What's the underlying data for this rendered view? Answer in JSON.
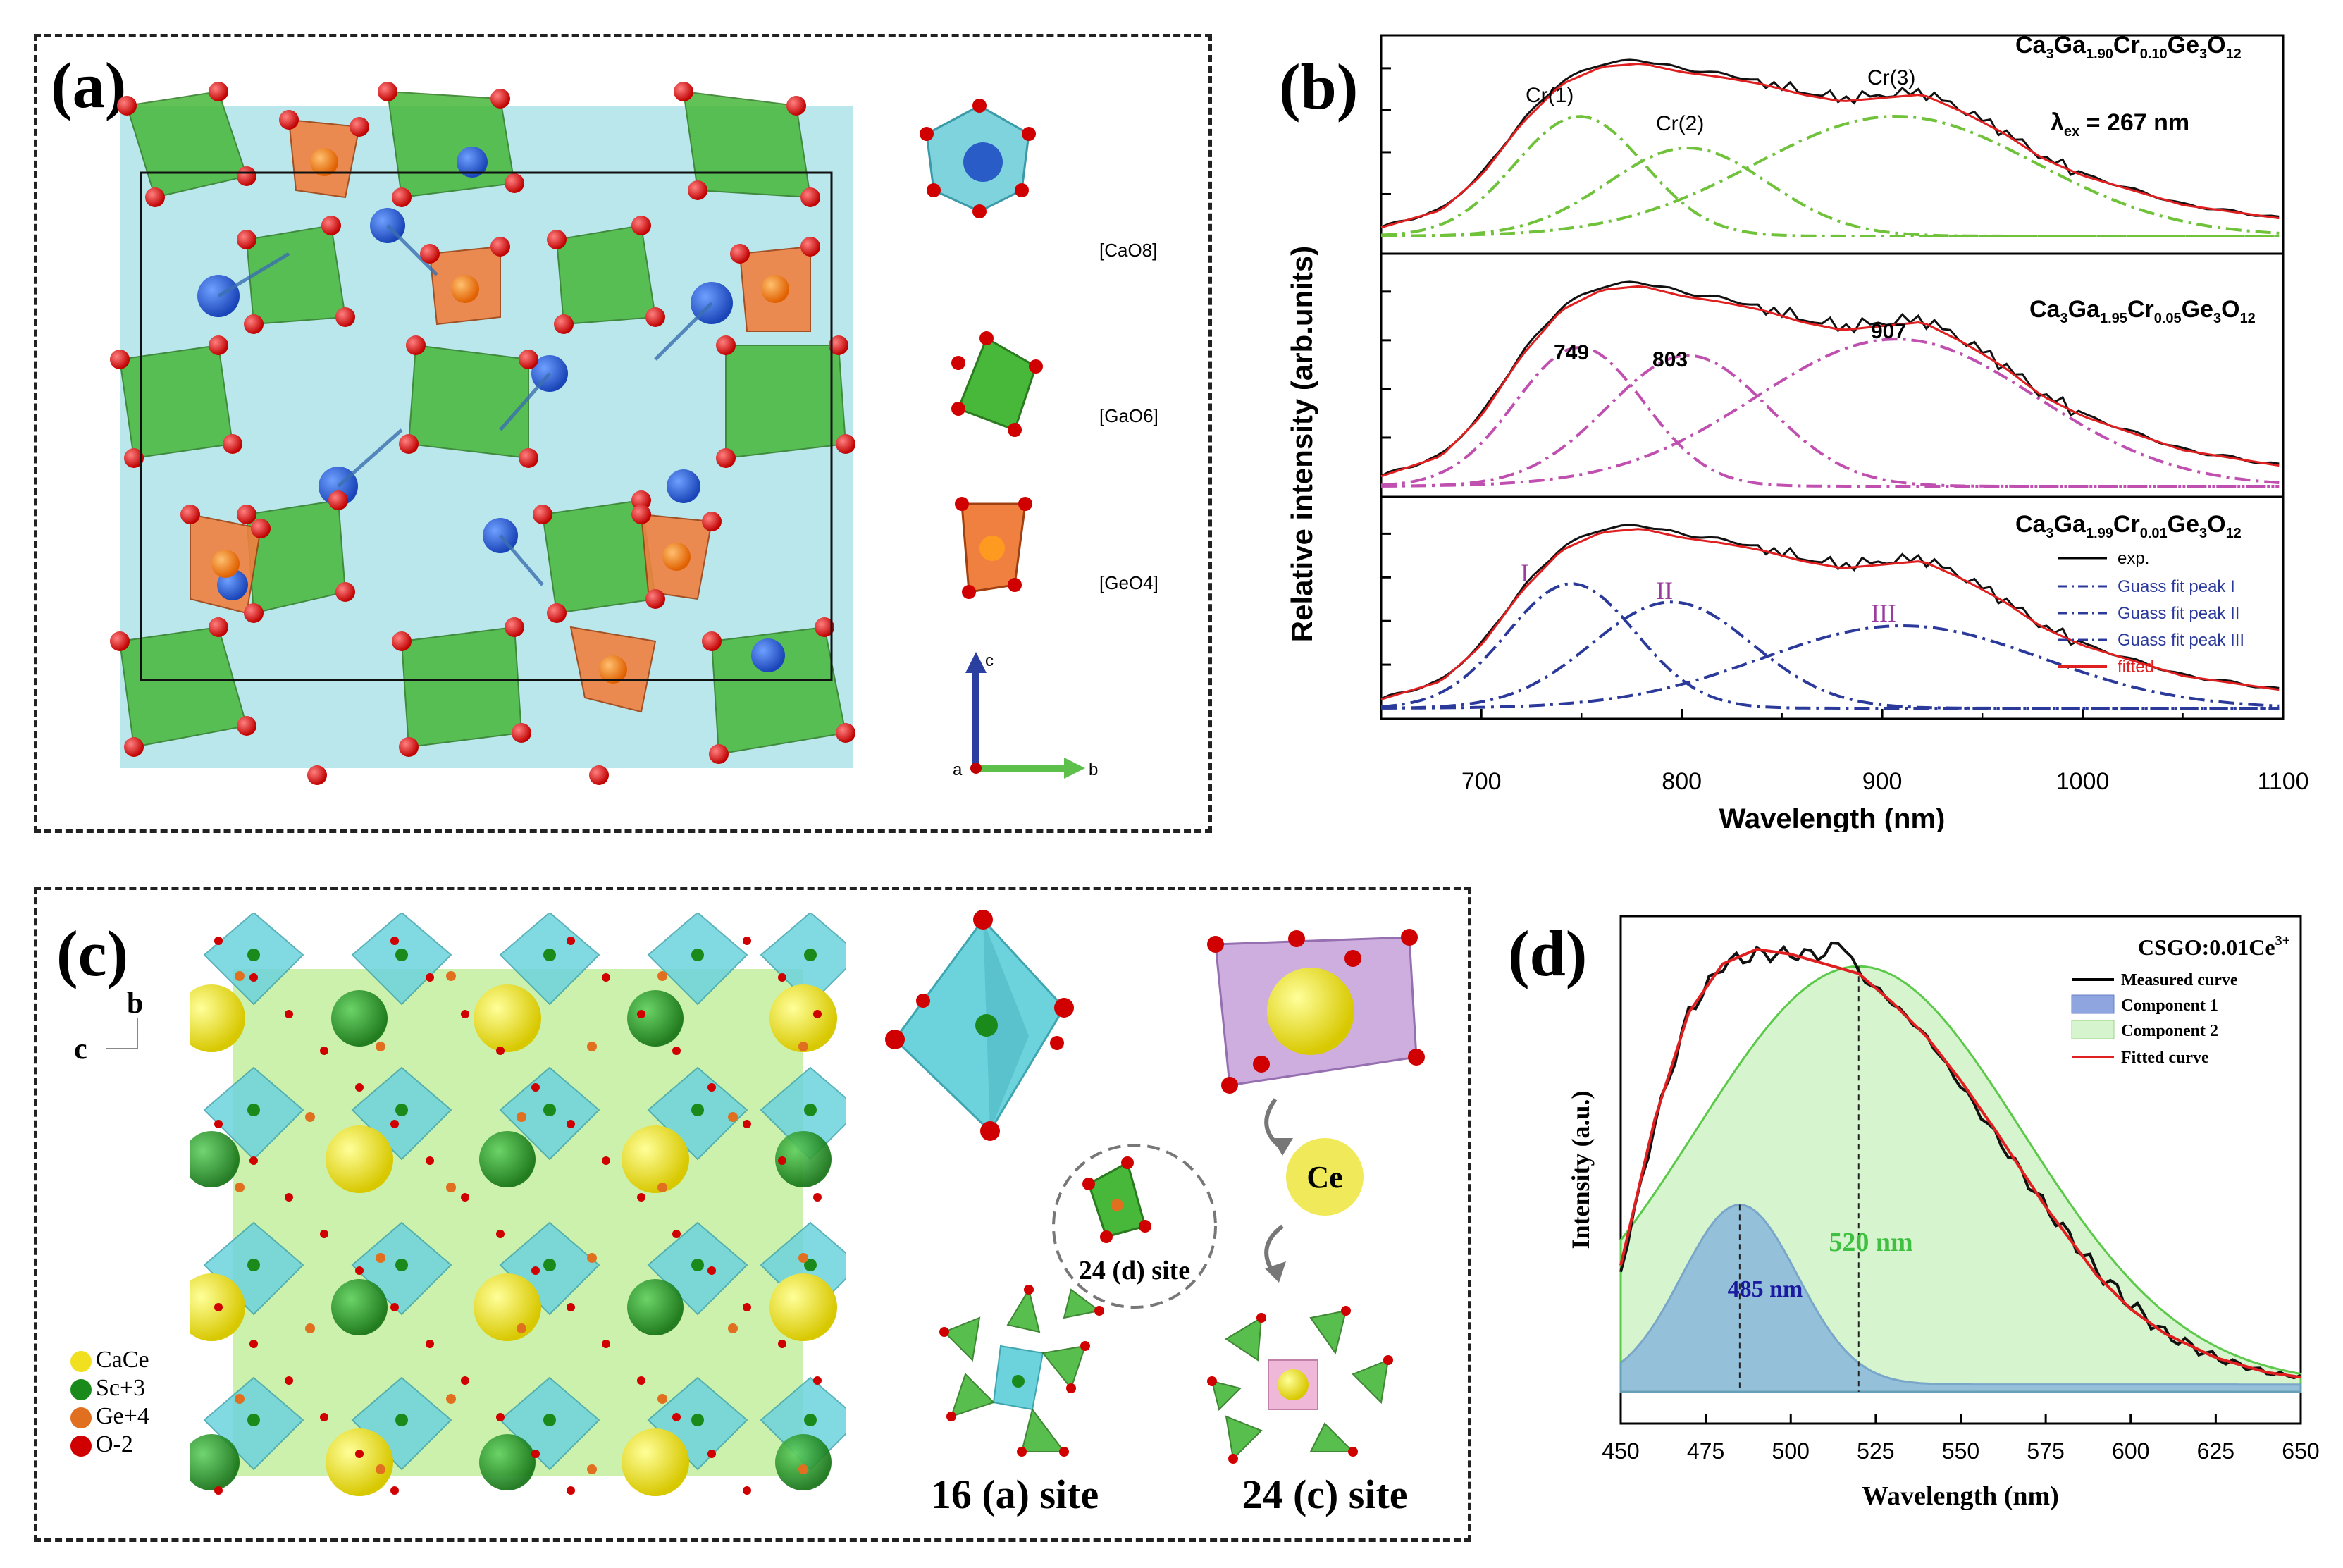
{
  "panels": {
    "a": {
      "label": "(a)",
      "legend": [
        "[CaO8]",
        "[GaO6]",
        "[GeO4]"
      ],
      "axes": {
        "c": "c",
        "a": "a",
        "b": "b"
      }
    },
    "b": {
      "label": "(b)",
      "ylabel": "Relative intensity (arb.units)",
      "xlabel": "Wavelength (nm)",
      "lambda_text": "λex = 267 nm",
      "compositions": [
        "Ca3Ga1.90Cr0.10Ge3O12",
        "Ca3Ga1.95Cr0.05Ge3O12",
        "Ca3Ga1.99Cr0.01Ge3O12"
      ],
      "peak_labels_top": [
        "Cr(1)",
        "Cr(2)",
        "Cr(3)"
      ],
      "peak_labels_mid": [
        "749",
        "803",
        "907"
      ],
      "peak_labels_bottom": [
        "I",
        "II",
        "III"
      ],
      "legend": [
        "exp.",
        "Guass fit peak I",
        "Guass fit peak II",
        "Guass fit peak III",
        "fitted"
      ],
      "xticks": [
        "700",
        "800",
        "900",
        "1000",
        "1100"
      ]
    },
    "c": {
      "label": "(c)",
      "axis_b": "b",
      "axis_c": "c",
      "legend": [
        "CaCe",
        "Sc+3",
        "Ge+4",
        "O-2"
      ],
      "ce_label": "Ce",
      "site_d": "24 (d) site",
      "site_a": "16 (a) site",
      "site_c": "24 (c) site"
    },
    "d": {
      "label": "(d)",
      "title": "CSGO:0.01Ce3+",
      "ylabel": "Intensity (a.u.)",
      "xlabel": "Wavelength (nm)",
      "legend": [
        "Measured curve",
        "Component 1",
        "Component 2",
        "Fitted curve"
      ],
      "peak1_label": "485 nm",
      "peak2_label": "520 nm",
      "xticks": [
        "450",
        "475",
        "500",
        "525",
        "550",
        "575",
        "600",
        "625",
        "650"
      ]
    }
  },
  "chart_data": [
    {
      "type": "line",
      "title": "Ca3Ga1.90Cr0.10Ge3O12 (panel b, top)",
      "xlabel": "Wavelength (nm)",
      "ylabel": "Relative intensity (arb.units)",
      "xlim": [
        650,
        1100
      ],
      "peaks_nm": [
        749,
        803,
        907
      ],
      "series": [
        {
          "name": "exp.",
          "x": [
            650,
            680,
            700,
            720,
            740,
            760,
            780,
            800,
            820,
            840,
            860,
            880,
            900,
            920,
            940,
            960,
            980,
            1000,
            1050,
            1100
          ],
          "values": [
            0.05,
            0.15,
            0.35,
            0.65,
            0.88,
            0.98,
            1.0,
            0.95,
            0.92,
            0.88,
            0.82,
            0.78,
            0.8,
            0.82,
            0.72,
            0.6,
            0.45,
            0.35,
            0.18,
            0.1
          ]
        },
        {
          "name": "Cr(1)",
          "center": 749,
          "amplitude": 0.68
        },
        {
          "name": "Cr(2)",
          "center": 803,
          "amplitude": 0.5
        },
        {
          "name": "Cr(3)",
          "center": 907,
          "amplitude": 0.68
        }
      ]
    },
    {
      "type": "line",
      "title": "Ca3Ga1.95Cr0.05Ge3O12 (panel b, middle)",
      "xlim": [
        650,
        1100
      ],
      "peaks_nm": [
        749,
        803,
        907
      ],
      "series": [
        {
          "name": "Guass fit peak I",
          "center": 749,
          "amplitude": 0.68
        },
        {
          "name": "Guass fit peak II",
          "center": 803,
          "amplitude": 0.64
        },
        {
          "name": "Guass fit peak III",
          "center": 907,
          "amplitude": 0.72
        }
      ]
    },
    {
      "type": "line",
      "title": "Ca3Ga1.99Cr0.01Ge3O12 (panel b, bottom)",
      "xlim": [
        650,
        1100
      ],
      "series": [
        {
          "name": "Guass fit peak I",
          "center": 745,
          "amplitude": 0.68
        },
        {
          "name": "Guass fit peak II",
          "center": 795,
          "amplitude": 0.58
        },
        {
          "name": "Guass fit peak III",
          "center": 910,
          "amplitude": 0.45
        }
      ]
    },
    {
      "type": "area",
      "title": "CSGO:0.01Ce3+",
      "xlabel": "Wavelength (nm)",
      "ylabel": "Intensity (a.u.)",
      "xlim": [
        450,
        650
      ],
      "series": [
        {
          "name": "Component 1",
          "center": 485,
          "amplitude": 0.37
        },
        {
          "name": "Component 2",
          "center": 520,
          "amplitude": 0.86
        },
        {
          "name": "Measured curve",
          "x": [
            450,
            460,
            470,
            480,
            490,
            500,
            510,
            515,
            520,
            530,
            540,
            550,
            560,
            575,
            590,
            600,
            610,
            625,
            640,
            650
          ],
          "values": [
            0.25,
            0.55,
            0.78,
            0.88,
            0.9,
            0.9,
            0.9,
            0.93,
            0.86,
            0.8,
            0.73,
            0.63,
            0.53,
            0.38,
            0.25,
            0.18,
            0.12,
            0.07,
            0.04,
            0.03
          ]
        },
        {
          "name": "Fitted curve",
          "x": [
            450,
            460,
            470,
            480,
            490,
            500,
            510,
            520,
            530,
            540,
            550,
            560,
            575,
            590,
            600,
            610,
            625,
            640,
            650
          ],
          "values": [
            0.26,
            0.56,
            0.78,
            0.88,
            0.91,
            0.9,
            0.88,
            0.86,
            0.8,
            0.73,
            0.64,
            0.54,
            0.38,
            0.24,
            0.17,
            0.12,
            0.07,
            0.04,
            0.03
          ]
        }
      ]
    }
  ]
}
